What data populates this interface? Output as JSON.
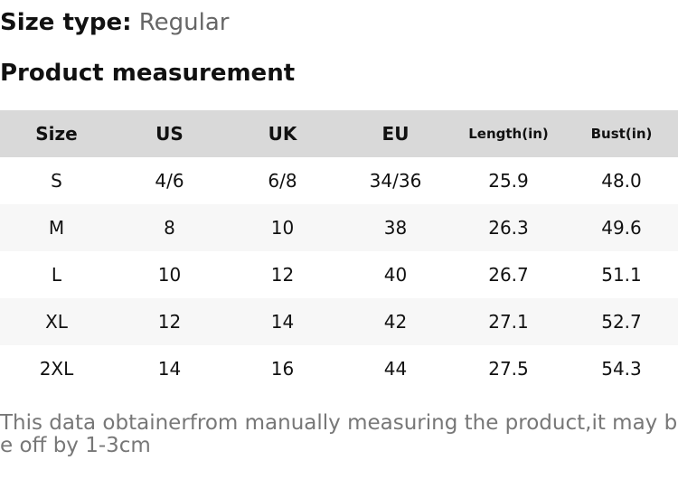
{
  "header": {
    "size_type_label": "Size type:",
    "size_type_value": "Regular",
    "title": "Product measurement"
  },
  "table": {
    "columns": [
      "Size",
      "US",
      "UK",
      "EU",
      "Length(in)",
      "Bust(in)"
    ],
    "rows": [
      [
        "S",
        "4/6",
        "6/8",
        "34/36",
        "25.9",
        "48.0"
      ],
      [
        "M",
        "8",
        "10",
        "38",
        "26.3",
        "49.6"
      ],
      [
        "L",
        "10",
        "12",
        "40",
        "26.7",
        "51.1"
      ],
      [
        "XL",
        "12",
        "14",
        "42",
        "27.1",
        "52.7"
      ],
      [
        "2XL",
        "14",
        "16",
        "44",
        "27.5",
        "54.3"
      ]
    ]
  },
  "note": "This data obtainerfrom manually measuring the product,it may be off by 1-3cm"
}
